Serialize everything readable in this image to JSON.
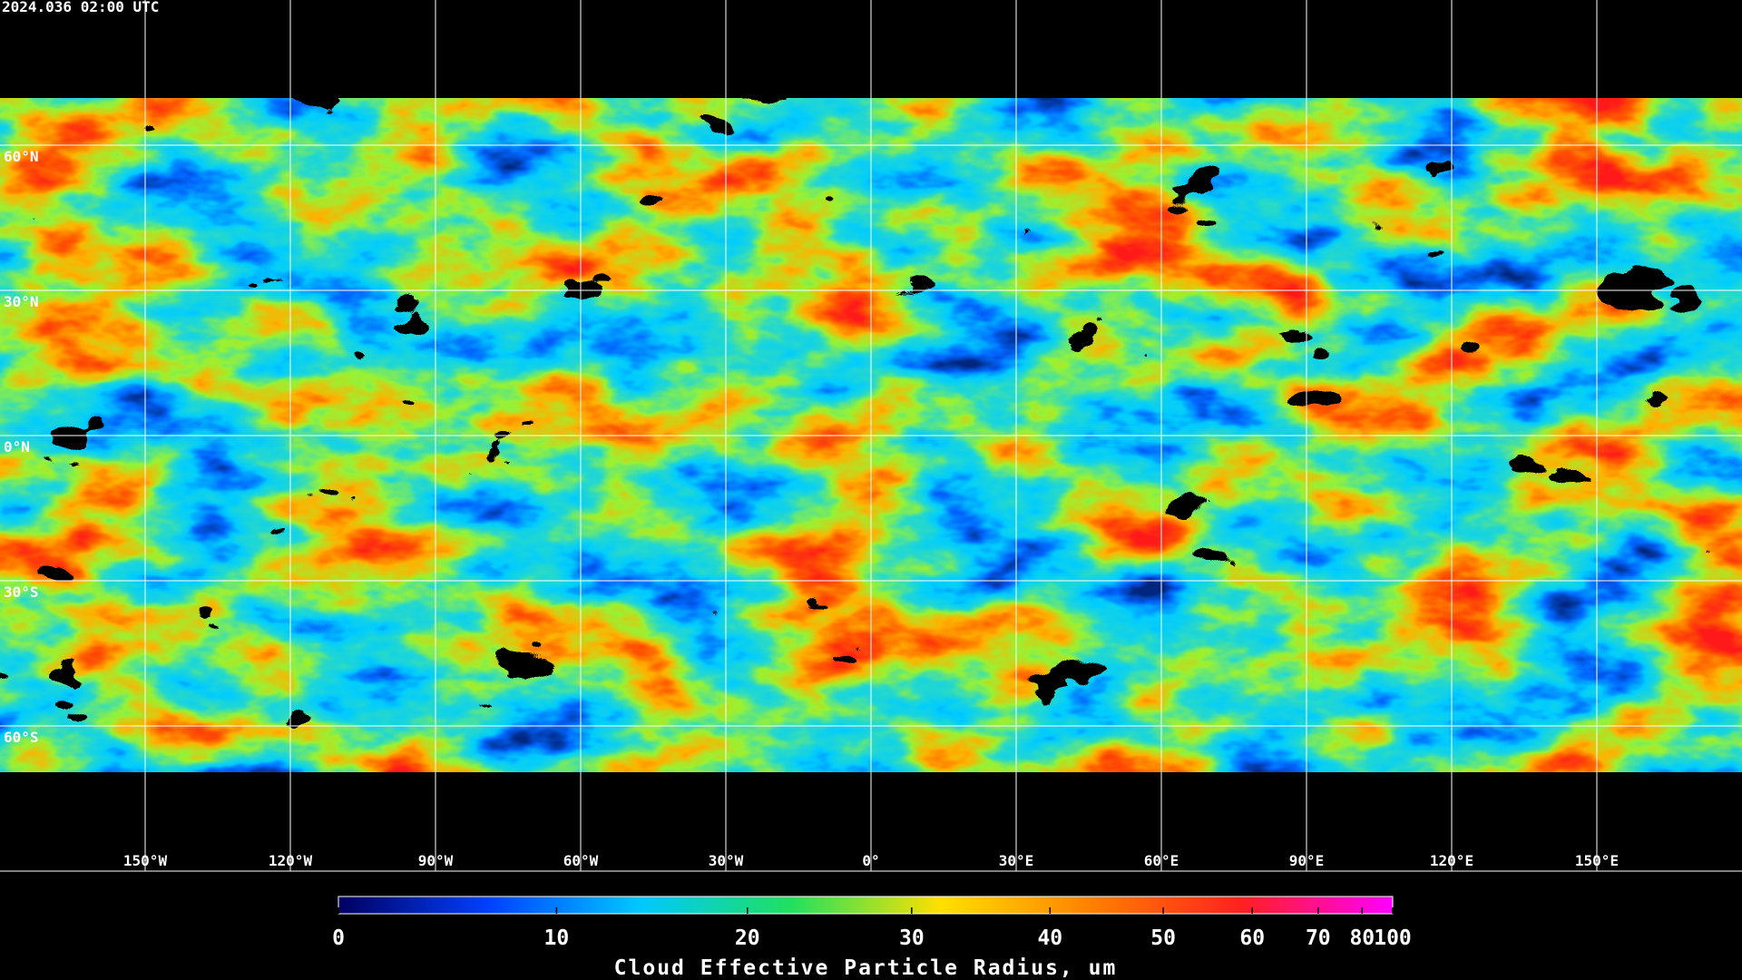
{
  "timestamp": "2024.036 02:00 UTC",
  "map": {
    "latitudes": [
      {
        "value": 60,
        "label": "60°N"
      },
      {
        "value": 30,
        "label": "30°N"
      },
      {
        "value": 0,
        "label": "0°N"
      },
      {
        "value": -30,
        "label": "30°S"
      },
      {
        "value": -60,
        "label": "60°S"
      }
    ],
    "longitudes": [
      {
        "value": -150,
        "label": "150°W"
      },
      {
        "value": -120,
        "label": "120°W"
      },
      {
        "value": -90,
        "label": "90°W"
      },
      {
        "value": -60,
        "label": "60°W"
      },
      {
        "value": -30,
        "label": "30°W"
      },
      {
        "value": 0,
        "label": "0°"
      },
      {
        "value": 30,
        "label": "30°E"
      },
      {
        "value": 60,
        "label": "60°E"
      },
      {
        "value": 90,
        "label": "90°E"
      },
      {
        "value": 120,
        "label": "120°E"
      },
      {
        "value": 150,
        "label": "150°E"
      }
    ]
  },
  "colorbar": {
    "label": "Cloud Effective Particle Radius, um",
    "range": [
      0,
      100
    ],
    "ticks": [
      0,
      10,
      20,
      30,
      40,
      50,
      60,
      70,
      80,
      100
    ],
    "colors": [
      "#000060",
      "#0040ff",
      "#00c8ff",
      "#20e060",
      "#ffe000",
      "#ff8000",
      "#ff2020",
      "#ff00ff"
    ]
  }
}
